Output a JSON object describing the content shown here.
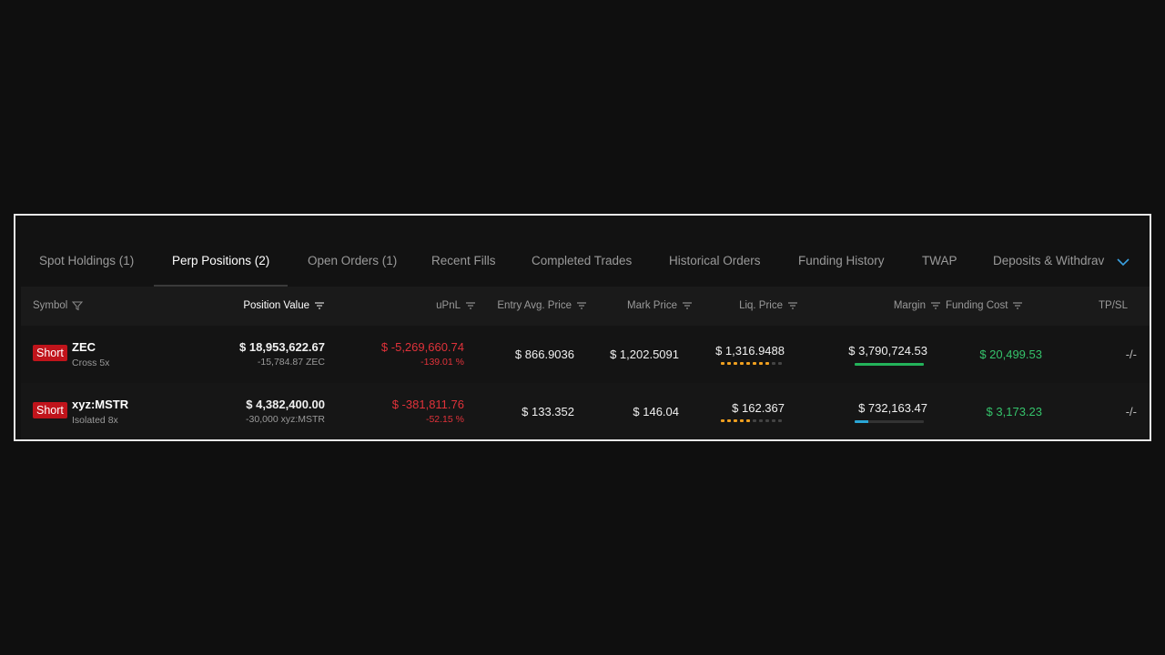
{
  "tabs": [
    {
      "label": "Spot Holdings (1)",
      "active": false
    },
    {
      "label": "Perp Positions (2)",
      "active": true
    },
    {
      "label": "Open Orders (1)",
      "active": false
    },
    {
      "label": "Recent Fills",
      "active": false
    },
    {
      "label": "Completed Trades",
      "active": false
    },
    {
      "label": "Historical Orders",
      "active": false
    },
    {
      "label": "Funding History",
      "active": false
    },
    {
      "label": "TWAP",
      "active": false
    },
    {
      "label": "Deposits & Withdrav",
      "active": false
    }
  ],
  "columns": {
    "symbol": "Symbol",
    "position_value": "Position Value",
    "upnl": "uPnL",
    "entry": "Entry Avg. Price",
    "mark": "Mark Price",
    "liq": "Liq. Price",
    "margin": "Margin",
    "funding": "Funding Cost",
    "tpsl": "TP/SL"
  },
  "rows": [
    {
      "side": "Short",
      "symbol": "ZEC",
      "mode": "Cross 5x",
      "position_value": "$ 18,953,622.67",
      "position_size": "-15,784.87 ZEC",
      "upnl": "$ -5,269,660.74",
      "upnl_pct": "-139.01 %",
      "entry": "$ 866.9036",
      "mark": "$ 1,202.5091",
      "liq": "$ 1,316.9488",
      "liq_risk_dots": 8,
      "margin": "$ 3,790,724.53",
      "margin_usage": 1.0,
      "funding": "$ 20,499.53",
      "tpsl": "-/-"
    },
    {
      "side": "Short",
      "symbol": "xyz:MSTR",
      "mode": "Isolated 8x",
      "position_value": "$ 4,382,400.00",
      "position_size": "-30,000 xyz:MSTR",
      "upnl": "$ -381,811.76",
      "upnl_pct": "-52.15 %",
      "entry": "$ 133.352",
      "mark": "$ 146.04",
      "liq": "$ 162.367",
      "liq_risk_dots": 5,
      "margin": "$ 732,163.47",
      "margin_usage": 0.2,
      "funding": "$ 3,173.23",
      "tpsl": "-/-"
    }
  ],
  "colors": {
    "short_badge": "#c0141b",
    "negative": "#e0323a",
    "positive": "#35c36b",
    "risk_dot": "#f0a020",
    "margin_bar_row1": "#23b35a",
    "margin_bar_row2": "#2aa6d6",
    "accent_chevron": "#3aa0e0"
  },
  "icons": {
    "symbol_filter": "filter-icon",
    "sort": "sort-lines-icon",
    "tabs_more": "chevron-down-icon"
  }
}
